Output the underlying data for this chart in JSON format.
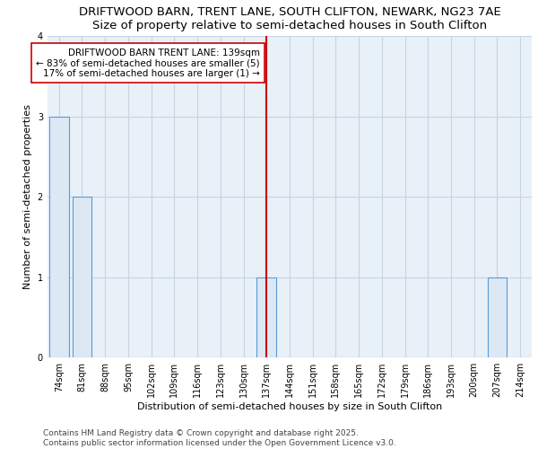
{
  "title": "DRIFTWOOD BARN, TRENT LANE, SOUTH CLIFTON, NEWARK, NG23 7AE",
  "subtitle": "Size of property relative to semi-detached houses in South Clifton",
  "xlabel": "Distribution of semi-detached houses by size in South Clifton",
  "ylabel": "Number of semi-detached properties",
  "categories": [
    "74sqm",
    "81sqm",
    "88sqm",
    "95sqm",
    "102sqm",
    "109sqm",
    "116sqm",
    "123sqm",
    "130sqm",
    "137sqm",
    "144sqm",
    "151sqm",
    "158sqm",
    "165sqm",
    "172sqm",
    "179sqm",
    "186sqm",
    "193sqm",
    "200sqm",
    "207sqm",
    "214sqm"
  ],
  "values": [
    3,
    2,
    0,
    0,
    0,
    0,
    0,
    0,
    0,
    1,
    0,
    0,
    0,
    0,
    0,
    0,
    0,
    0,
    0,
    1,
    0
  ],
  "bar_color": "#dce9f5",
  "bar_edge_color": "#5b9bd5",
  "subject_line_idx": 9,
  "subject_line_color": "#cc0000",
  "annotation_text": "DRIFTWOOD BARN TRENT LANE: 139sqm\n← 83% of semi-detached houses are smaller (5)\n17% of semi-detached houses are larger (1) →",
  "annotation_box_color": "#ffffff",
  "annotation_box_edge_color": "#cc0000",
  "ylim": [
    0,
    4
  ],
  "yticks": [
    0,
    1,
    2,
    3,
    4
  ],
  "fig_bg_color": "#ffffff",
  "plot_bg_color": "#e8f0f8",
  "grid_color": "#c8d4e0",
  "footer_text": "Contains HM Land Registry data © Crown copyright and database right 2025.\nContains public sector information licensed under the Open Government Licence v3.0.",
  "title_fontsize": 9.5,
  "subtitle_fontsize": 8.5,
  "xlabel_fontsize": 8,
  "ylabel_fontsize": 8,
  "tick_fontsize": 7,
  "annotation_fontsize": 7.5,
  "footer_fontsize": 6.5
}
